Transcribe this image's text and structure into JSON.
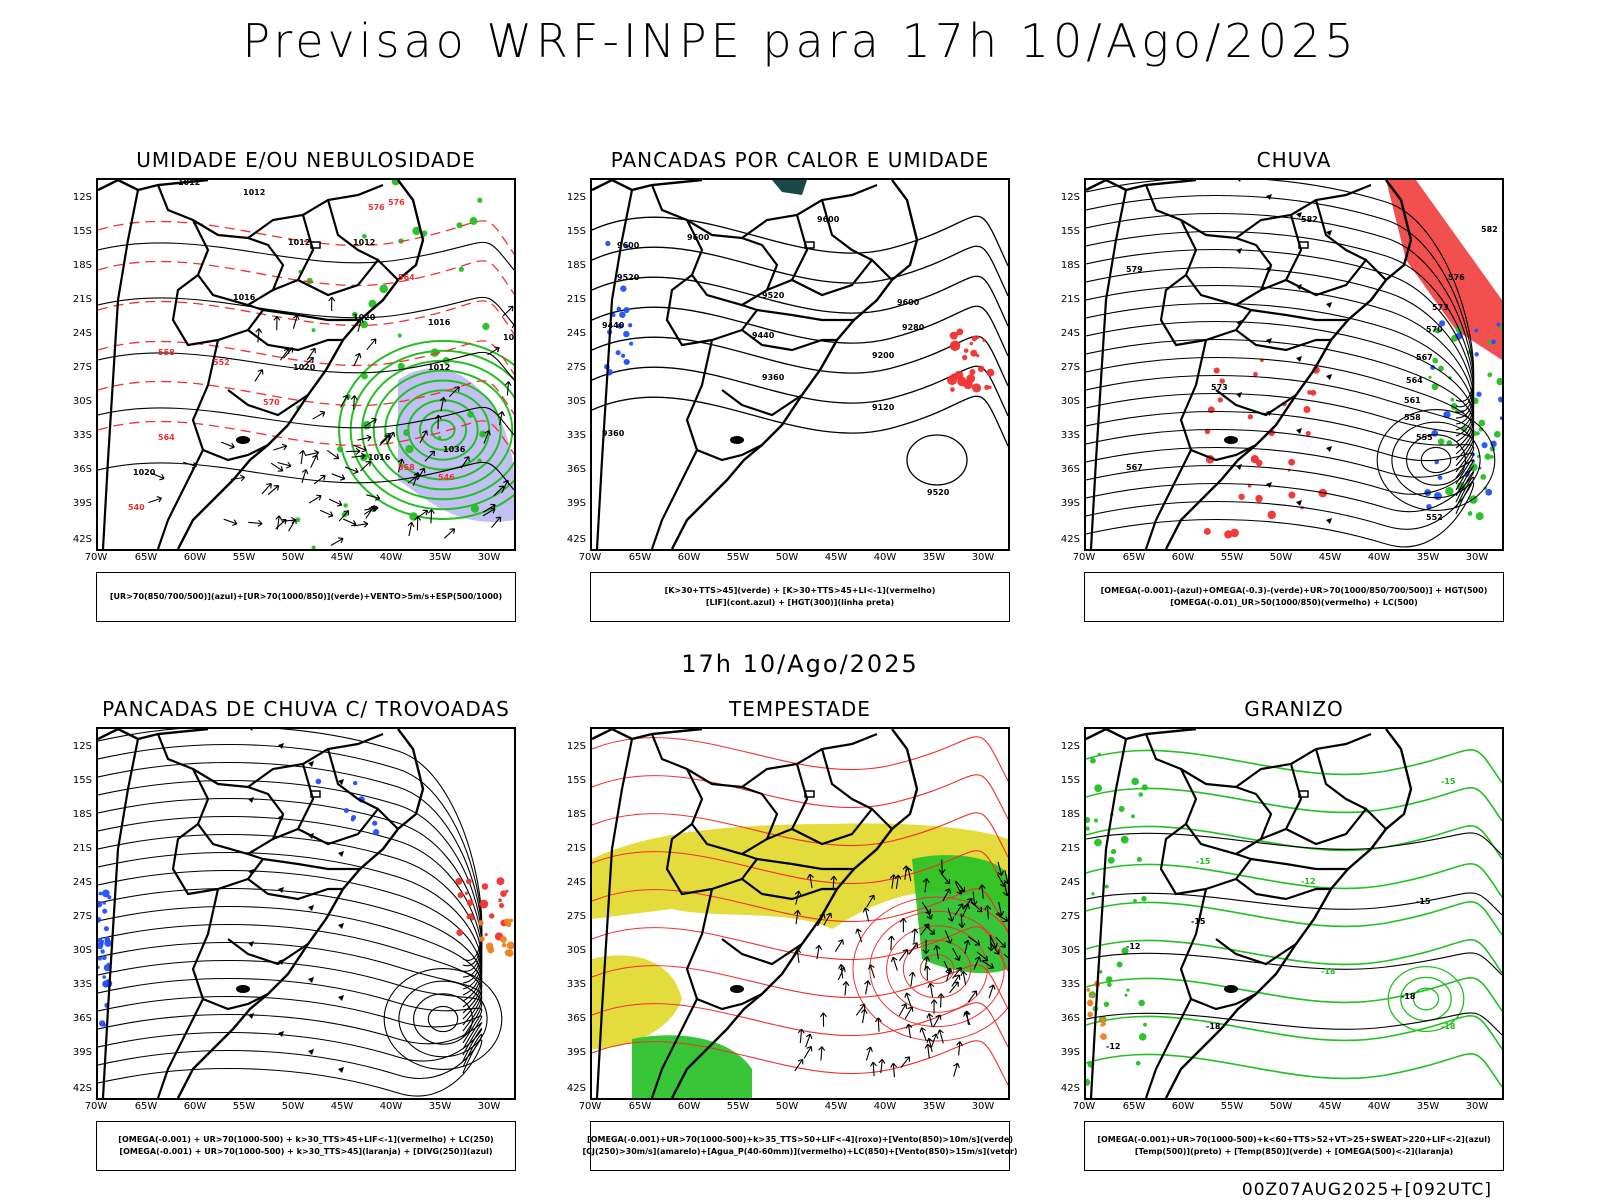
{
  "header": {
    "title": "Previsao WRF-INPE  para 17h 10/Ago/2025"
  },
  "middle": {
    "subtitle": "17h 10/Ago/2025"
  },
  "footer": {
    "run_info": "00Z07AUG2025+[092UTC]"
  },
  "axes": {
    "lat_ticks": [
      "12S",
      "15S",
      "18S",
      "21S",
      "24S",
      "27S",
      "30S",
      "33S",
      "36S",
      "39S",
      "42S"
    ],
    "lon_ticks": [
      "70W",
      "65W",
      "60W",
      "55W",
      "50W",
      "45W",
      "40W",
      "35W",
      "30W"
    ]
  },
  "colors": {
    "green": "#22c022",
    "red": "#f03030",
    "blue": "#2050ff",
    "lavender": "#b0b0f0",
    "yellow": "#e4dc3c",
    "orange": "#f08020",
    "teal": "#1a4848"
  },
  "panels": [
    {
      "title": "UMIDADE E/OU NEBULOSIDADE",
      "legend": [
        "[UR>70(850/700/500)](azul)+[UR>70(1000/850)](verde)+VENTO>5m/s+ESP(500/1000)"
      ],
      "labels": [
        "1012",
        "1012",
        "1012",
        "1012",
        "1016",
        "1020",
        "1016",
        "1012",
        "1016",
        "1020",
        "1016",
        "1020",
        "1036",
        "576",
        "576",
        "564",
        "558",
        "552",
        "570",
        "564",
        "558",
        "546",
        "540"
      ]
    },
    {
      "title": "PANCADAS POR CALOR E UMIDADE",
      "legend": [
        "[K>30+TTS>45](verde) + [K>30+TTS>45+LI<-1](vermelho)",
        "[LIF](cont.azul) + [HGT(300)](linha preta)"
      ],
      "labels": [
        "9600",
        "9600",
        "9600",
        "9520",
        "9520",
        "9440",
        "9440",
        "9360",
        "9360",
        "9280",
        "9200",
        "9120",
        "9520",
        "9600"
      ]
    },
    {
      "title": "CHUVA",
      "legend": [
        "[OMEGA(-0.001)-(azul)+OMEGA(-0.3)-(verde)+UR>70(1000/850/700/500)] + HGT(500)",
        "[OMEGA(-0.01)_UR>50(1000/850)(vermelho) + LC(500)"
      ],
      "labels": [
        "582",
        "582",
        "576",
        "573",
        "570",
        "567",
        "564",
        "561",
        "558",
        "555",
        "552",
        "579",
        "573",
        "567"
      ]
    },
    {
      "title": "PANCADAS DE CHUVA C/ TROVOADAS",
      "legend": [
        "[OMEGA(-0.001) + UR>70(1000-500) + k>30_TTS>45+LIF<-1](vermelho) + LC(250)",
        "[OMEGA(-0.001) + UR>70(1000-500) + k>30_TTS>45](laranja) + [DIVG(250)](azul)"
      ],
      "labels": []
    },
    {
      "title": "TEMPESTADE",
      "legend": [
        "[OMEGA(-0.001)+UR>70(1000-500)+k>35_TTS>50+LIF<-4](roxo)+[Vento(850)>10m/s](verde)",
        "[CJ(250)>30m/s](amarelo)+[Agua_P(40-60mm)](vermelho)+LC(850)+[Vento(850)>15m/s](vetor)"
      ],
      "labels": []
    },
    {
      "title": "GRANIZO",
      "legend": [
        "[OMEGA(-0.001)+UR>70(1000-500)+k<60+TTS>52+VT>25+SWEAT>220+LIF<-2](azul)",
        "[Temp(500)](preto) + [Temp(850)](verde) + [OMEGA(500)<-2](laranja)"
      ],
      "labels": [
        "-12",
        "-15",
        "-15",
        "-18",
        "-18",
        "-12",
        "-15",
        "-18",
        "-12",
        "-15",
        "-18"
      ]
    }
  ]
}
